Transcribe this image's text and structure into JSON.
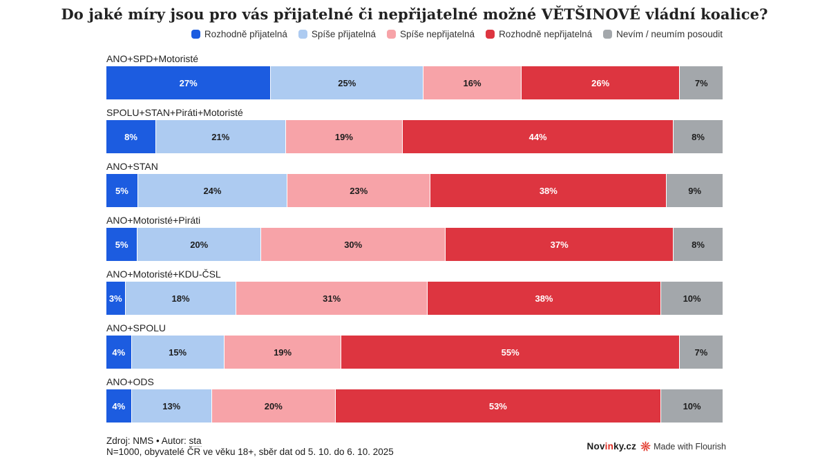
{
  "title": "Do jaké míry jsou pro vás přijatelné či nepřijatelné možné VĚTŠINOVÉ vládní koalice?",
  "chart_data": {
    "type": "bar",
    "stacked": true,
    "orientation": "horizontal",
    "unit": "%",
    "xlim": [
      0,
      100
    ],
    "legend_position": "top-right",
    "grid": false,
    "categories": [
      "ANO+SPD+Motoristé",
      "SPOLU+STAN+Piráti+Motoristé",
      "ANO+STAN",
      "ANO+Motoristé+Piráti",
      "ANO+Motoristé+KDU-ČSL",
      "ANO+SPOLU",
      "ANO+ODS"
    ],
    "series": [
      {
        "name": "Rozhodně přijatelná",
        "color": "#1c5ce0",
        "text_color": "#ffffff",
        "values": [
          27,
          8,
          5,
          5,
          3,
          4,
          4
        ]
      },
      {
        "name": "Spíše přijatelná",
        "color": "#adcbf1",
        "text_color": "#1d1d1d",
        "values": [
          25,
          21,
          24,
          20,
          18,
          15,
          13
        ]
      },
      {
        "name": "Spíše nepřijatelná",
        "color": "#f7a3a8",
        "text_color": "#1d1d1d",
        "values": [
          16,
          19,
          23,
          30,
          31,
          19,
          20
        ]
      },
      {
        "name": "Rozhodně nepřijatelná",
        "color": "#dd3540",
        "text_color": "#ffffff",
        "values": [
          26,
          44,
          38,
          37,
          38,
          55,
          53
        ]
      },
      {
        "name": "Nevím / neumím posoudit",
        "color": "#a3a7ab",
        "text_color": "#1d1d1d",
        "values": [
          7,
          8,
          9,
          8,
          10,
          7,
          10
        ]
      }
    ]
  },
  "footer": {
    "source_prefix": "Zdroj: NMS • Autor: ",
    "author": "sta",
    "line2": "N=1000, obyvatelé ČR ve věku 18+, sběr dat od 5. 10. do 6. 10. 2025"
  },
  "branding": {
    "novinky_prefix": "Nov",
    "novinky_accent": "in",
    "novinky_suffix": "ky.cz",
    "accent_color": "#dc2b22",
    "flourish_label": "Made with Flourish",
    "flourish_icon_color": "#e23b2e"
  }
}
